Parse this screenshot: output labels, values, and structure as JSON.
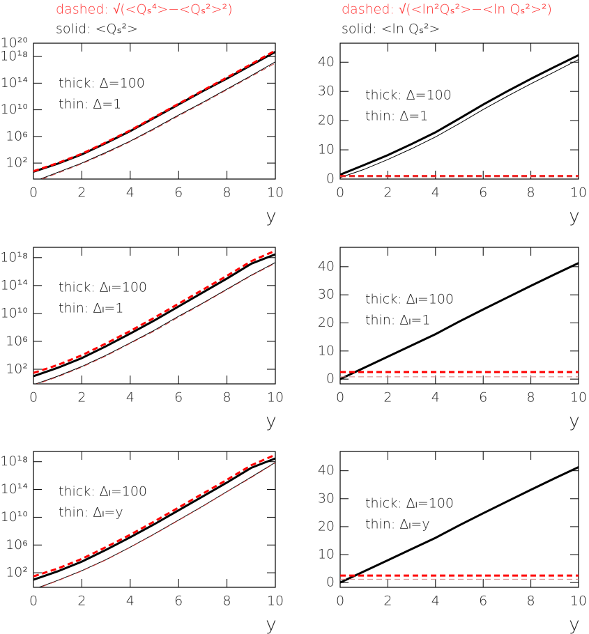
{
  "chart_data": [
    {
      "type": "line",
      "ylog": true,
      "header": [
        {
          "text": "dashed: √(<Qₛ⁴>−<Qₛ²>²)",
          "color": "#ff3333"
        },
        {
          "text": "solid: <Qₛ²>",
          "color": "#222222"
        }
      ],
      "annotations": [
        "thick: Δ=100",
        "thin: Δ=1"
      ],
      "x_label": "y",
      "x": [
        0,
        1,
        2,
        3,
        4,
        5,
        6,
        7,
        8,
        9,
        10
      ],
      "xlim": [
        0,
        10
      ],
      "xticks": [
        0,
        2,
        4,
        6,
        8,
        10
      ],
      "ylim": [
        0.4,
        1e+20
      ],
      "yticks": [
        {
          "value": 100,
          "label": "10²"
        },
        {
          "value": 1000000.0,
          "label": "10⁶"
        },
        {
          "value": 10000000000.0,
          "label": "10¹⁰"
        },
        {
          "value": 100000000000000.0,
          "label": "10¹⁴"
        },
        {
          "value": 1e+18,
          "label": "10¹⁸"
        },
        {
          "value": 1e+20,
          "label": "10²⁰"
        }
      ],
      "series": [
        {
          "color": "#000000",
          "width": 3,
          "dashed": false,
          "values": [
            5,
            80,
            2000.0,
            100000.0,
            6300000.0,
            630000000.0,
            63000000000.0,
            6300000000000.0,
            500000000000000.0,
            5e+16,
            5e+18
          ]
        },
        {
          "color": "#000000",
          "width": 1,
          "dashed": false,
          "values": [
            0.16,
            4,
            100,
            4000.0,
            200000.0,
            16000000.0,
            1600000000.0,
            130000000000.0,
            13000000000000.0,
            1300000000000000.0,
            1.6e+17
          ]
        },
        {
          "color": "#ff0000",
          "width": 3,
          "dashed": true,
          "values": [
            6,
            100,
            2500.0,
            130000.0,
            8000000.0,
            800000000.0,
            80000000000.0,
            8000000000000.0,
            700000000000000.0,
            7e+16,
            8e+18
          ]
        },
        {
          "color": "#cc4444",
          "width": 1,
          "dashed": true,
          "values": [
            0.13,
            3,
            80,
            3000.0,
            160000.0,
            12000000.0,
            1200000000.0,
            100000000000.0,
            10000000000000.0,
            1000000000000000.0,
            1e+17
          ]
        }
      ]
    },
    {
      "type": "line",
      "ylog": false,
      "header": [
        {
          "text": "dashed: √(<ln²Qₛ²>−<ln Qₛ²>²)",
          "color": "#ff3333"
        },
        {
          "text": "solid: <ln Qₛ²>",
          "color": "#222222"
        }
      ],
      "annotations": [
        "thick: Δ=100",
        "thin: Δ=1"
      ],
      "x_label": "y",
      "x": [
        0,
        1,
        2,
        3,
        4,
        5,
        6,
        7,
        8,
        9,
        10
      ],
      "xlim": [
        0,
        10
      ],
      "xticks": [
        0,
        2,
        4,
        6,
        8,
        10
      ],
      "ylim": [
        0,
        46.5
      ],
      "yticks": [
        0,
        10,
        20,
        30,
        40
      ],
      "series": [
        {
          "color": "#000000",
          "width": 3,
          "dashed": false,
          "values": [
            1.5,
            4.8,
            8.2,
            12,
            16,
            20.7,
            25.5,
            30,
            34.3,
            38.4,
            42.4
          ]
        },
        {
          "color": "#000000",
          "width": 1,
          "dashed": false,
          "values": [
            0.5,
            3.3,
            6.7,
            10.4,
            14.4,
            19,
            23.8,
            28.3,
            32.6,
            36.7,
            40.9
          ]
        },
        {
          "color": "#ff0000",
          "width": 3,
          "dashed": true,
          "values": [
            1,
            1,
            1,
            1,
            1,
            1,
            1,
            1,
            1,
            1,
            1
          ]
        },
        {
          "color": "#cc4444",
          "width": 1,
          "dashed": true,
          "values": [
            0.9,
            0.9,
            0.9,
            0.9,
            0.9,
            0.9,
            0.9,
            0.9,
            0.9,
            0.9,
            0.9
          ]
        }
      ]
    },
    {
      "type": "line",
      "ylog": true,
      "annotations": [
        "thick: Δₗ=100",
        "thin: Δₗ=1"
      ],
      "x_label": "y",
      "x": [
        0,
        1,
        2,
        3,
        4,
        5,
        6,
        7,
        8,
        9,
        10
      ],
      "xlim": [
        0,
        10
      ],
      "xticks": [
        0,
        2,
        4,
        6,
        8,
        10
      ],
      "ylim": [
        0.8,
        3e+19
      ],
      "yticks": [
        {
          "value": 100,
          "label": "10²"
        },
        {
          "value": 1000000.0,
          "label": "10⁶"
        },
        {
          "value": 10000000000.0,
          "label": "10¹⁰"
        },
        {
          "value": 100000000000000.0,
          "label": "10¹⁴"
        },
        {
          "value": 1e+18,
          "label": "10¹⁸"
        }
      ],
      "series": [
        {
          "color": "#000000",
          "width": 3,
          "dashed": false,
          "values": [
            10,
            160,
            4000.0,
            200000.0,
            13000000.0,
            1000000000.0,
            100000000000.0,
            10000000000000.0,
            1000000000000000.0,
            1.3e+17,
            3e+18
          ]
        },
        {
          "color": "#000000",
          "width": 1,
          "dashed": false,
          "values": [
            0.6,
            10,
            250,
            10000.0,
            600000.0,
            40000000.0,
            4000000000.0,
            300000000000.0,
            30000000000000.0,
            3000000000000000.0,
            2e+17
          ]
        },
        {
          "color": "#ff0000",
          "width": 3,
          "dashed": true,
          "values": [
            30,
            400,
            10000.0,
            500000.0,
            30000000.0,
            2500000000.0,
            250000000000.0,
            25000000000000.0,
            2500000000000000.0,
            3e+17,
            1e+19
          ]
        },
        {
          "color": "#cc4444",
          "width": 1,
          "dashed": true,
          "values": [
            0.5,
            8,
            200,
            8000.0,
            500000.0,
            30000000.0,
            3000000000.0,
            250000000000.0,
            25000000000000.0,
            2500000000000000.0,
            1.6e+17
          ]
        }
      ]
    },
    {
      "type": "line",
      "ylog": false,
      "annotations": [
        "thick: Δₗ=100",
        "thin: Δₗ=1"
      ],
      "x_label": "y",
      "x": [
        0,
        1,
        2,
        3,
        4,
        5,
        6,
        7,
        8,
        9,
        10
      ],
      "xlim": [
        0,
        10
      ],
      "xticks": [
        0,
        2,
        4,
        6,
        8,
        10
      ],
      "ylim": [
        -1.7,
        46.9
      ],
      "yticks": [
        0,
        10,
        20,
        30,
        40
      ],
      "series": [
        {
          "color": "#000000",
          "width": 3,
          "dashed": false,
          "values": [
            0,
            4,
            8,
            12,
            16,
            20.5,
            24.8,
            29,
            33.2,
            37.3,
            41.3
          ]
        },
        {
          "color": "#ff0000",
          "width": 3,
          "dashed": true,
          "values": [
            2.5,
            2.5,
            2.5,
            2.5,
            2.5,
            2.5,
            2.5,
            2.5,
            2.5,
            2.5,
            2.5
          ]
        },
        {
          "color": "#d08080",
          "width": 1,
          "dashed": true,
          "values": [
            0.8,
            0.8,
            0.8,
            0.8,
            0.8,
            0.8,
            0.8,
            0.8,
            0.8,
            0.8,
            0.8
          ]
        }
      ]
    },
    {
      "type": "line",
      "ylog": true,
      "annotations": [
        "thick: Δₗ=100",
        "thin: Δₗ=y"
      ],
      "x_label": "y",
      "x": [
        0,
        1,
        2,
        3,
        4,
        5,
        6,
        7,
        8,
        9,
        10
      ],
      "xlim": [
        0,
        10
      ],
      "xticks": [
        0,
        2,
        4,
        6,
        8,
        10
      ],
      "ylim": [
        0.8,
        3e+19
      ],
      "yticks": [
        {
          "value": 100,
          "label": "10²"
        },
        {
          "value": 1000000.0,
          "label": "10⁶"
        },
        {
          "value": 10000000000.0,
          "label": "10¹⁰"
        },
        {
          "value": 100000000000000.0,
          "label": "10¹⁴"
        },
        {
          "value": 1e+18,
          "label": "10¹⁸"
        }
      ],
      "series": [
        {
          "color": "#000000",
          "width": 3,
          "dashed": false,
          "values": [
            10,
            160,
            4000.0,
            200000.0,
            13000000.0,
            1000000000.0,
            100000000000.0,
            10000000000000.0,
            1000000000000000.0,
            1.3e+17,
            3e+18
          ]
        },
        {
          "color": "#000000",
          "width": 1,
          "dashed": false,
          "values": [
            0.4,
            8,
            200,
            8000.0,
            500000.0,
            40000000.0,
            4000000000.0,
            400000000000.0,
            50000000000000.0,
            6000000000000000.0,
            8e+17
          ]
        },
        {
          "color": "#ff0000",
          "width": 3,
          "dashed": true,
          "values": [
            30,
            400,
            10000.0,
            500000.0,
            30000000.0,
            2500000000.0,
            250000000000.0,
            25000000000000.0,
            2500000000000000.0,
            3e+17,
            1e+19
          ]
        },
        {
          "color": "#cc4444",
          "width": 1,
          "dashed": true,
          "values": [
            0.35,
            7,
            180,
            7000.0,
            450000.0,
            35000000.0,
            3500000000.0,
            350000000000.0,
            45000000000000.0,
            5000000000000000.0,
            7e+17
          ]
        }
      ]
    },
    {
      "type": "line",
      "ylog": false,
      "annotations": [
        "thick: Δₗ=100",
        "thin: Δₗ=y"
      ],
      "x_label": "y",
      "x": [
        0,
        1,
        2,
        3,
        4,
        5,
        6,
        7,
        8,
        9,
        10
      ],
      "xlim": [
        0,
        10
      ],
      "xticks": [
        0,
        2,
        4,
        6,
        8,
        10
      ],
      "ylim": [
        -1.7,
        46.9
      ],
      "yticks": [
        0,
        10,
        20,
        30,
        40
      ],
      "series": [
        {
          "color": "#000000",
          "width": 3,
          "dashed": false,
          "values": [
            0,
            4,
            8,
            12,
            16,
            20.5,
            24.8,
            29,
            33.2,
            37.3,
            41.3
          ]
        },
        {
          "color": "#ff0000",
          "width": 3,
          "dashed": true,
          "values": [
            2.5,
            2.5,
            2.5,
            2.5,
            2.5,
            2.5,
            2.5,
            2.5,
            2.5,
            2.5,
            2.5
          ]
        },
        {
          "color": "#d08080",
          "width": 1,
          "dashed": true,
          "values": [
            1.2,
            1.2,
            1.2,
            1.2,
            1.2,
            1.2,
            1.2,
            1.2,
            1.2,
            1.2,
            1.2
          ]
        }
      ]
    }
  ]
}
